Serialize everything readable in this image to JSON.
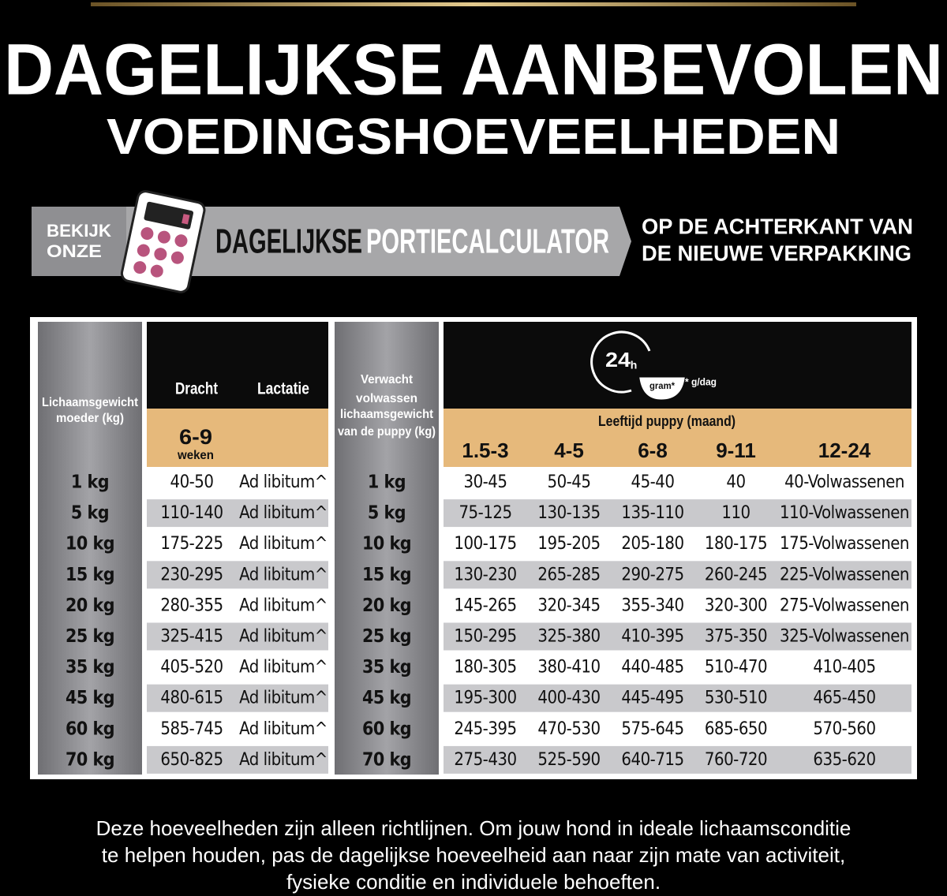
{
  "header": {
    "title_lines": [
      "DAGELIJKSE AANBEVOLEN",
      "VOEDINGSHOEVEELHEDEN"
    ]
  },
  "banner": {
    "lead": [
      "BEKIJK",
      "ONZE"
    ],
    "name_dark": "DAGELIJKSE",
    "name_light": "PORTIECALCULATOR",
    "note": [
      "OP DE ACHTERKANT VAN",
      "DE NIEUWE VERPAKKING"
    ]
  },
  "table": {
    "mother_weight": [
      "Lichaamsgewicht",
      "moeder (kg)"
    ],
    "dracht": "Dracht",
    "lactatie": "Lactatie",
    "weeks": "6-9",
    "weeks_unit": "weken",
    "puppy_weight": [
      "Verwacht",
      "volwassen",
      "lichaamsgewicht",
      "van de puppy (kg)"
    ],
    "clock": "24",
    "clock_unit": "h",
    "bowl": "gram*",
    "unit_note": "* g/dag",
    "age_title": "Leeftijd puppy (maand)",
    "ages": [
      "1.5-3",
      "4-5",
      "6-8",
      "9-11",
      "12-24"
    ],
    "rows": [
      [
        "1 kg",
        "40-50",
        "Ad libitum^",
        "1 kg",
        "30-45",
        "50-45",
        "45-40",
        "40",
        "40-Volwassenen"
      ],
      [
        "5 kg",
        "110-140",
        "Ad libitum^",
        "5 kg",
        "75-125",
        "130-135",
        "135-110",
        "110",
        "110-Volwassenen"
      ],
      [
        "10 kg",
        "175-225",
        "Ad libitum^",
        "10 kg",
        "100-175",
        "195-205",
        "205-180",
        "180-175",
        "175-Volwassenen"
      ],
      [
        "15 kg",
        "230-295",
        "Ad libitum^",
        "15 kg",
        "130-230",
        "265-285",
        "290-275",
        "260-245",
        "225-Volwassenen"
      ],
      [
        "20 kg",
        "280-355",
        "Ad libitum^",
        "20 kg",
        "145-265",
        "320-345",
        "355-340",
        "320-300",
        "275-Volwassenen"
      ],
      [
        "25 kg",
        "325-415",
        "Ad libitum^",
        "25 kg",
        "150-295",
        "325-380",
        "410-395",
        "375-350",
        "325-Volwassenen"
      ],
      [
        "35 kg",
        "405-520",
        "Ad libitum^",
        "35 kg",
        "180-305",
        "380-410",
        "440-485",
        "510-470",
        "410-405"
      ],
      [
        "45 kg",
        "480-615",
        "Ad libitum^",
        "45 kg",
        "195-300",
        "400-430",
        "445-495",
        "530-510",
        "465-450"
      ],
      [
        "60 kg",
        "585-745",
        "Ad libitum^",
        "60 kg",
        "245-395",
        "470-530",
        "575-645",
        "685-650",
        "570-560"
      ],
      [
        "70 kg",
        "650-825",
        "Ad libitum^",
        "70 kg",
        "275-430",
        "525-590",
        "640-715",
        "760-720",
        "635-620"
      ]
    ]
  },
  "footer": {
    "lines": [
      "Deze hoeveelheden zijn alleen richtlijnen. Om jouw hond in ideale lichaamsconditie",
      "te helpen houden, pas de dagelijkse hoeveelheid aan naar zijn mate van activiteit,",
      "fysieke conditie en individuele behoeften."
    ]
  }
}
